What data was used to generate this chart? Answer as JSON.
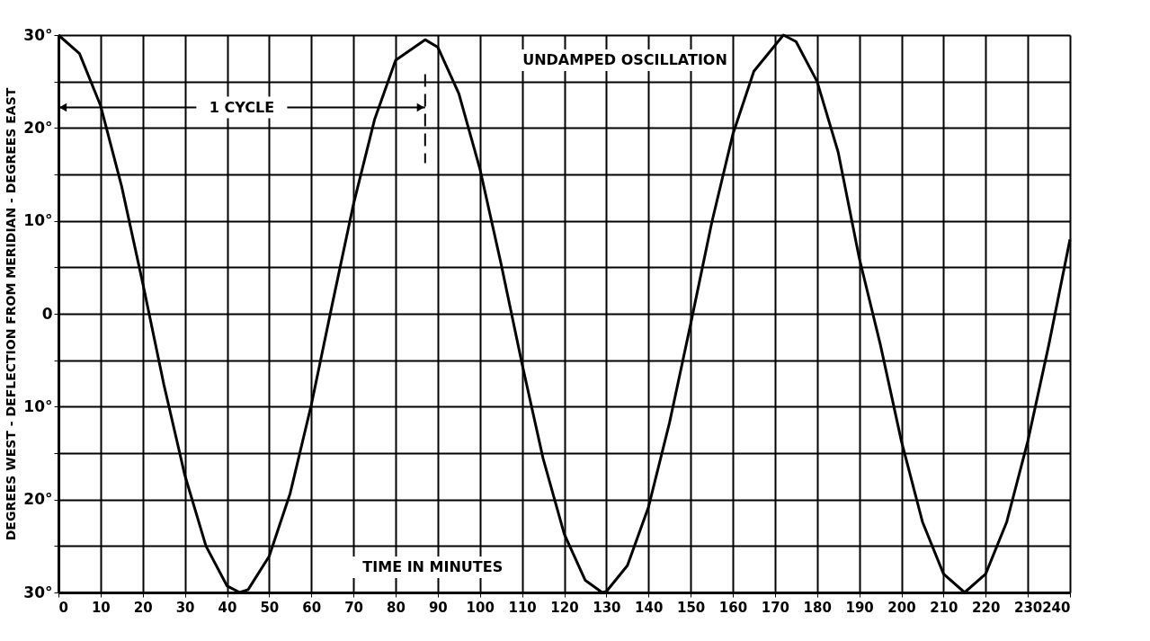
{
  "chart_data": {
    "type": "line",
    "ylabel": "DEGREES WEST - DEFLECTION FROM MERIDIAN - DEGREES EAST",
    "xlabel": "TIME IN MINUTES",
    "annotations": [
      "UNDAMPED OSCILLATION"
    ],
    "ref_lines": [
      {
        "axis": "x",
        "value": 87,
        "line_style": "dashed",
        "label": "1 CYCLE"
      }
    ],
    "x": [
      0,
      5,
      10,
      15,
      20,
      25,
      30,
      35,
      40,
      43,
      45,
      50,
      55,
      60,
      65,
      70,
      75,
      80,
      87,
      90,
      95,
      100,
      105,
      110,
      115,
      120,
      125,
      129,
      130,
      135,
      140,
      145,
      150,
      155,
      160,
      165,
      172,
      175,
      180,
      185,
      190,
      195,
      200,
      205,
      210,
      215,
      220,
      225,
      230,
      235,
      240
    ],
    "series": [
      {
        "color": "#000000",
        "values": [
          30,
          28.0,
          22.4,
          13.7,
          3.3,
          -7.6,
          -17.4,
          -25.0,
          -29.3,
          -30,
          -29.7,
          -26.1,
          -19.3,
          -9.8,
          1.1,
          11.8,
          20.9,
          27.3,
          29.5,
          28.7,
          23.7,
          15.6,
          5.4,
          -5.4,
          -15.6,
          -23.7,
          -28.7,
          -30,
          -29.9,
          -27.1,
          -20.8,
          -11.7,
          -1.1,
          9.8,
          19.3,
          26.1,
          30,
          29.3,
          25.0,
          17.4,
          6,
          -3.3,
          -13.7,
          -22.4,
          -28.0,
          -30,
          -28.0,
          -22.4,
          -13.7,
          -3.3,
          8
        ]
      }
    ],
    "xlim": [
      0,
      240
    ],
    "xticks": [
      0,
      10,
      20,
      30,
      40,
      50,
      60,
      70,
      80,
      90,
      100,
      110,
      120,
      130,
      140,
      150,
      160,
      170,
      180,
      190,
      200,
      210,
      220,
      230,
      240
    ],
    "ylim": [
      -30,
      30
    ],
    "yticks": [
      {
        "value": -30,
        "label": "30°"
      },
      {
        "value": -25,
        "label": null
      },
      {
        "value": -20,
        "label": "20°"
      },
      {
        "value": -15,
        "label": null
      },
      {
        "value": -10,
        "label": "10°"
      },
      {
        "value": -5,
        "label": null
      },
      0,
      {
        "value": 5,
        "label": null
      },
      {
        "value": 10,
        "label": "10°"
      },
      {
        "value": 15,
        "label": null
      },
      {
        "value": 20,
        "label": "20°"
      },
      {
        "value": 25,
        "label": null
      },
      {
        "value": 30,
        "label": "30°"
      }
    ],
    "grid": true,
    "marker": "none",
    "line_style": "solid"
  }
}
